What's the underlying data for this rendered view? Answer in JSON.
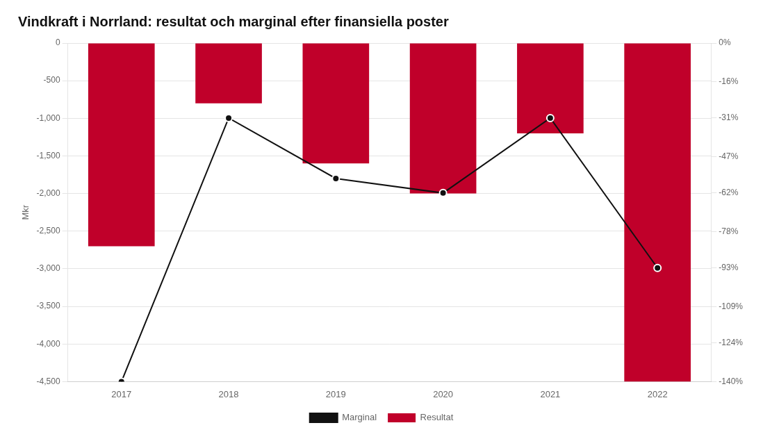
{
  "chart_data": {
    "type": "bar",
    "title": "Vindkraft i Norrland: resultat och marginal efter finansiella poster",
    "categories": [
      "2017",
      "2018",
      "2019",
      "2020",
      "2021",
      "2022"
    ],
    "series": [
      {
        "name": "Resultat",
        "type": "bar",
        "color": "#c0002a",
        "values": [
          -2700,
          -800,
          -1600,
          -2000,
          -1200,
          -4500
        ]
      },
      {
        "name": "Marginal",
        "type": "line",
        "color": "#111111",
        "marker": "circle",
        "line_style": "solid",
        "axis": "y2",
        "values": [
          -140,
          -31,
          -56,
          -62,
          -31,
          -93
        ]
      }
    ],
    "ylabel": "Mkr",
    "ylim": [
      -4500,
      0
    ],
    "yticks": [
      0,
      -500,
      {
        "value": -1000,
        "label": "-1,000"
      },
      {
        "value": -1500,
        "label": "-1,500"
      },
      {
        "value": -2000,
        "label": "-2,000"
      },
      {
        "value": -2500,
        "label": "-2,500"
      },
      {
        "value": -3000,
        "label": "-3,000"
      },
      {
        "value": -3500,
        "label": "-3,500"
      },
      {
        "value": -4000,
        "label": "-4,000"
      },
      {
        "value": -4500,
        "label": "-4,500"
      }
    ],
    "y2lim": [
      -140,
      0
    ],
    "y2ticks": [
      {
        "value": 0,
        "label": "0%"
      },
      {
        "value": -16,
        "label": "-16%"
      },
      {
        "value": -31,
        "label": "-31%"
      },
      {
        "value": -47,
        "label": "-47%"
      },
      {
        "value": -62,
        "label": "-62%"
      },
      {
        "value": -78,
        "label": "-78%"
      },
      {
        "value": -93,
        "label": "-93%"
      },
      {
        "value": -109,
        "label": "-109%"
      },
      {
        "value": -124,
        "label": "-124%"
      },
      {
        "value": -140,
        "label": "-140%"
      }
    ],
    "grid": true,
    "legend": "bottom"
  }
}
